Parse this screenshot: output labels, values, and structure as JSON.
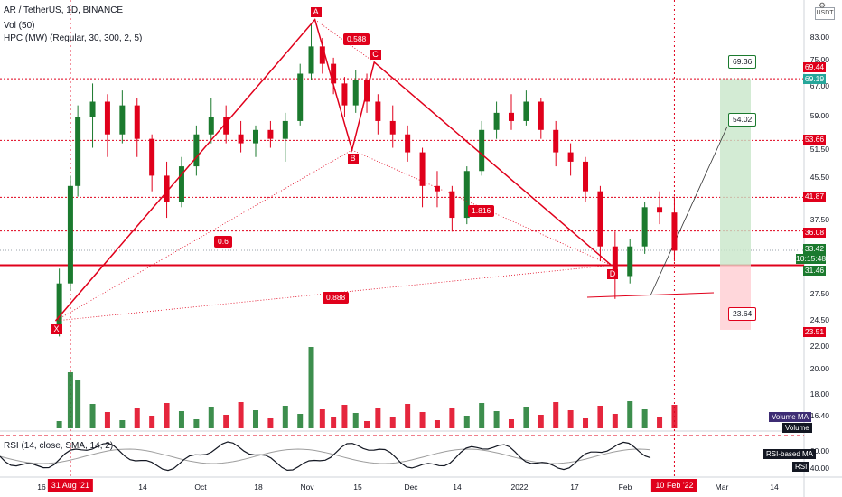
{
  "header": {
    "symbol_line": "AR / TetherUS, 1D, BINANCE",
    "vol_line": "Vol (50)",
    "hpc_line": "HPC (MW) (Regular, 30, 300, 2, 5)",
    "rsi_line": "RSI (14, close, SMA, 14, 2)",
    "currency": "USDT"
  },
  "price_axis": [
    "83.00",
    "75.00",
    "67.00",
    "59.00",
    "51.50",
    "45.50",
    "37.50",
    "27.50",
    "24.50",
    "22.00",
    "20.00",
    "18.00",
    "16.40"
  ],
  "rsi_axis": [
    "60.00",
    "40.00"
  ],
  "time_axis": [
    "16",
    "Oct",
    "14",
    "18",
    "Nov",
    "15",
    "Dec",
    "14",
    "2022",
    "17",
    "Feb",
    "Mar",
    "14"
  ],
  "time_axis_highlight": [
    "31 Aug '21",
    "10 Feb '22"
  ],
  "price_tags": [
    {
      "value": "69.44",
      "color": "#e0001b"
    },
    {
      "value": "69.19",
      "color": "#26a69a"
    },
    {
      "value": "53.66",
      "color": "#e0001b"
    },
    {
      "value": "41.87",
      "color": "#e0001b"
    },
    {
      "value": "36.08",
      "color": "#e0001b"
    },
    {
      "value": "33.42",
      "color": "#1b7a2e"
    },
    {
      "value": "10:15:48",
      "color": "#1b7a2e"
    },
    {
      "value": "31.46",
      "color": "#1b7a2e"
    },
    {
      "value": "23.51",
      "color": "#e0001b"
    }
  ],
  "pattern_points": [
    "X",
    "A",
    "B",
    "C",
    "D"
  ],
  "ratio_labels": [
    "0.588",
    "1.816",
    "0.6",
    "0.888"
  ],
  "target_boxes": [
    "69.36",
    "54.02",
    "23.64"
  ],
  "indicator_tags": [
    "Volume MA",
    "Volume",
    "RSI-based MA",
    "RSI"
  ],
  "colors": {
    "bull": "#1b7a2e",
    "bear": "#e0001b",
    "pattern": "#e0001b",
    "target_zone": "#c8e6c9",
    "stop_zone": "#ffcdd2"
  },
  "chart_data": {
    "type": "candlestick",
    "title": "AR / TetherUS, 1D, BINANCE",
    "x_range": [
      "2021-08-12",
      "2022-03-17"
    ],
    "ohlc": [
      [
        "2021-08-28",
        24,
        31,
        23,
        29
      ],
      [
        "2021-08-31",
        29,
        46,
        28,
        44
      ],
      [
        "2021-09-02",
        44,
        62,
        42,
        59
      ],
      [
        "2021-09-06",
        59,
        68,
        52,
        63
      ],
      [
        "2021-09-10",
        63,
        65,
        50,
        55
      ],
      [
        "2021-09-14",
        55,
        66,
        53,
        62
      ],
      [
        "2021-09-18",
        62,
        64,
        50,
        54
      ],
      [
        "2021-09-22",
        54,
        55,
        43,
        46
      ],
      [
        "2021-09-26",
        46,
        49,
        38,
        41
      ],
      [
        "2021-09-30",
        41,
        50,
        40,
        48
      ],
      [
        "2021-10-04",
        48,
        57,
        46,
        55
      ],
      [
        "2021-10-08",
        55,
        64,
        53,
        59
      ],
      [
        "2021-10-12",
        59,
        62,
        53,
        55
      ],
      [
        "2021-10-16",
        55,
        58,
        51,
        53
      ],
      [
        "2021-10-20",
        53,
        57,
        50,
        56
      ],
      [
        "2021-10-24",
        56,
        58,
        52,
        54
      ],
      [
        "2021-10-28",
        54,
        60,
        49,
        58
      ],
      [
        "2021-11-01",
        58,
        74,
        57,
        71
      ],
      [
        "2021-11-04",
        71,
        88,
        69,
        80
      ],
      [
        "2021-11-07",
        80,
        83,
        71,
        74
      ],
      [
        "2021-11-10",
        74,
        76,
        65,
        68
      ],
      [
        "2021-11-13",
        68,
        70,
        59,
        62
      ],
      [
        "2021-11-16",
        62,
        72,
        60,
        69
      ],
      [
        "2021-11-19",
        69,
        71,
        60,
        63
      ],
      [
        "2021-11-22",
        63,
        65,
        55,
        58
      ],
      [
        "2021-11-26",
        58,
        62,
        52,
        55
      ],
      [
        "2021-11-30",
        55,
        57,
        49,
        51
      ],
      [
        "2021-12-04",
        51,
        52,
        40,
        44
      ],
      [
        "2021-12-08",
        44,
        47,
        40,
        43
      ],
      [
        "2021-12-12",
        43,
        44,
        36,
        38
      ],
      [
        "2021-12-16",
        38,
        48,
        37,
        47
      ],
      [
        "2021-12-20",
        47,
        58,
        46,
        56
      ],
      [
        "2021-12-24",
        56,
        63,
        54,
        60
      ],
      [
        "2021-12-28",
        60,
        65,
        56,
        58
      ],
      [
        "2022-01-01",
        58,
        66,
        57,
        63
      ],
      [
        "2022-01-05",
        63,
        64,
        54,
        56
      ],
      [
        "2022-01-09",
        56,
        58,
        48,
        51
      ],
      [
        "2022-01-13",
        51,
        53,
        46,
        49
      ],
      [
        "2022-01-17",
        49,
        50,
        41,
        43
      ],
      [
        "2022-01-21",
        43,
        44,
        32,
        34
      ],
      [
        "2022-01-25",
        34,
        36,
        27,
        30
      ],
      [
        "2022-01-29",
        30,
        35,
        29,
        34
      ],
      [
        "2022-02-02",
        34,
        41,
        33,
        40
      ],
      [
        "2022-02-06",
        40,
        43,
        37,
        39
      ],
      [
        "2022-02-10",
        39,
        42,
        32,
        33.42
      ]
    ],
    "harmonic_pattern": {
      "X": [
        "2021-08-27",
        24.5
      ],
      "A": [
        "2021-11-05",
        89.5
      ],
      "B": [
        "2021-11-15",
        51.5
      ],
      "C": [
        "2021-11-21",
        74.5
      ],
      "D": [
        "2022-01-24",
        31.46
      ]
    },
    "ratios": {
      "XB": 0.6,
      "AC": 0.588,
      "BD": 1.816,
      "XD": 0.888
    },
    "horizontal_levels": [
      69.44,
      53.66,
      41.87,
      36.08,
      31.46
    ],
    "current_price": 33.42,
    "targets": [
      69.36,
      54.02
    ],
    "stop": 23.64,
    "rsi_levels": [
      60,
      40
    ]
  }
}
